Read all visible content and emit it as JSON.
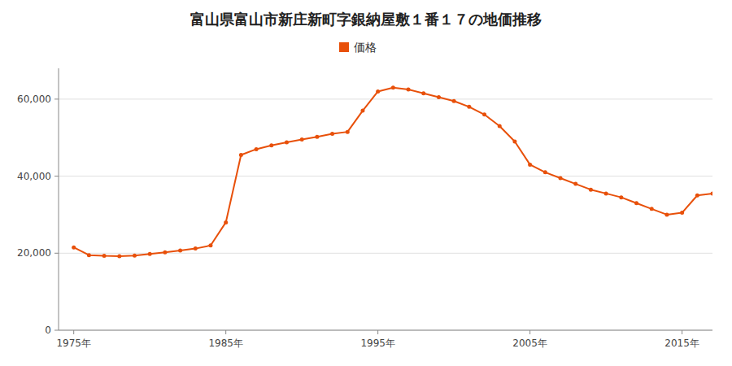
{
  "chart_data": {
    "type": "line",
    "title": "富山県富山市新庄新町字銀納屋敷１番１７の地価推移",
    "x": [
      1975,
      1976,
      1977,
      1978,
      1979,
      1980,
      1981,
      1982,
      1983,
      1984,
      1985,
      1986,
      1987,
      1988,
      1989,
      1990,
      1991,
      1992,
      1993,
      1994,
      1995,
      1996,
      1997,
      1998,
      1999,
      2000,
      2001,
      2002,
      2003,
      2004,
      2005,
      2006,
      2007,
      2008,
      2009,
      2010,
      2011,
      2012,
      2013,
      2014,
      2015,
      2016,
      2017
    ],
    "series": [
      {
        "name": "価格",
        "color": "#E8500A",
        "marker": "circle",
        "line_style": "solid",
        "values": [
          21500,
          19500,
          19300,
          19200,
          19400,
          19800,
          20200,
          20700,
          21200,
          22000,
          28000,
          45500,
          47000,
          48000,
          48800,
          49500,
          50200,
          51000,
          51500,
          57000,
          62000,
          63000,
          62500,
          61500,
          60500,
          59500,
          58000,
          56000,
          53000,
          49000,
          43000,
          41000,
          39500,
          38000,
          36500,
          35500,
          34500,
          33000,
          31500,
          30000,
          30500,
          35000,
          35500
        ]
      }
    ],
    "xlim": [
      1974,
      2017
    ],
    "xticks": [
      {
        "value": 1975,
        "label": "1975年"
      },
      {
        "value": 1985,
        "label": "1985年"
      },
      {
        "value": 1995,
        "label": "1995年"
      },
      {
        "value": 2005,
        "label": "2005年"
      },
      {
        "value": 2015,
        "label": "2015年"
      }
    ],
    "ylim": [
      0,
      68000
    ],
    "yticks": [
      0,
      {
        "value": 20000,
        "label": "20,000"
      },
      {
        "value": 40000,
        "label": "40,000"
      },
      {
        "value": 60000,
        "label": "60,000"
      }
    ],
    "grid": true,
    "legend": "top"
  }
}
